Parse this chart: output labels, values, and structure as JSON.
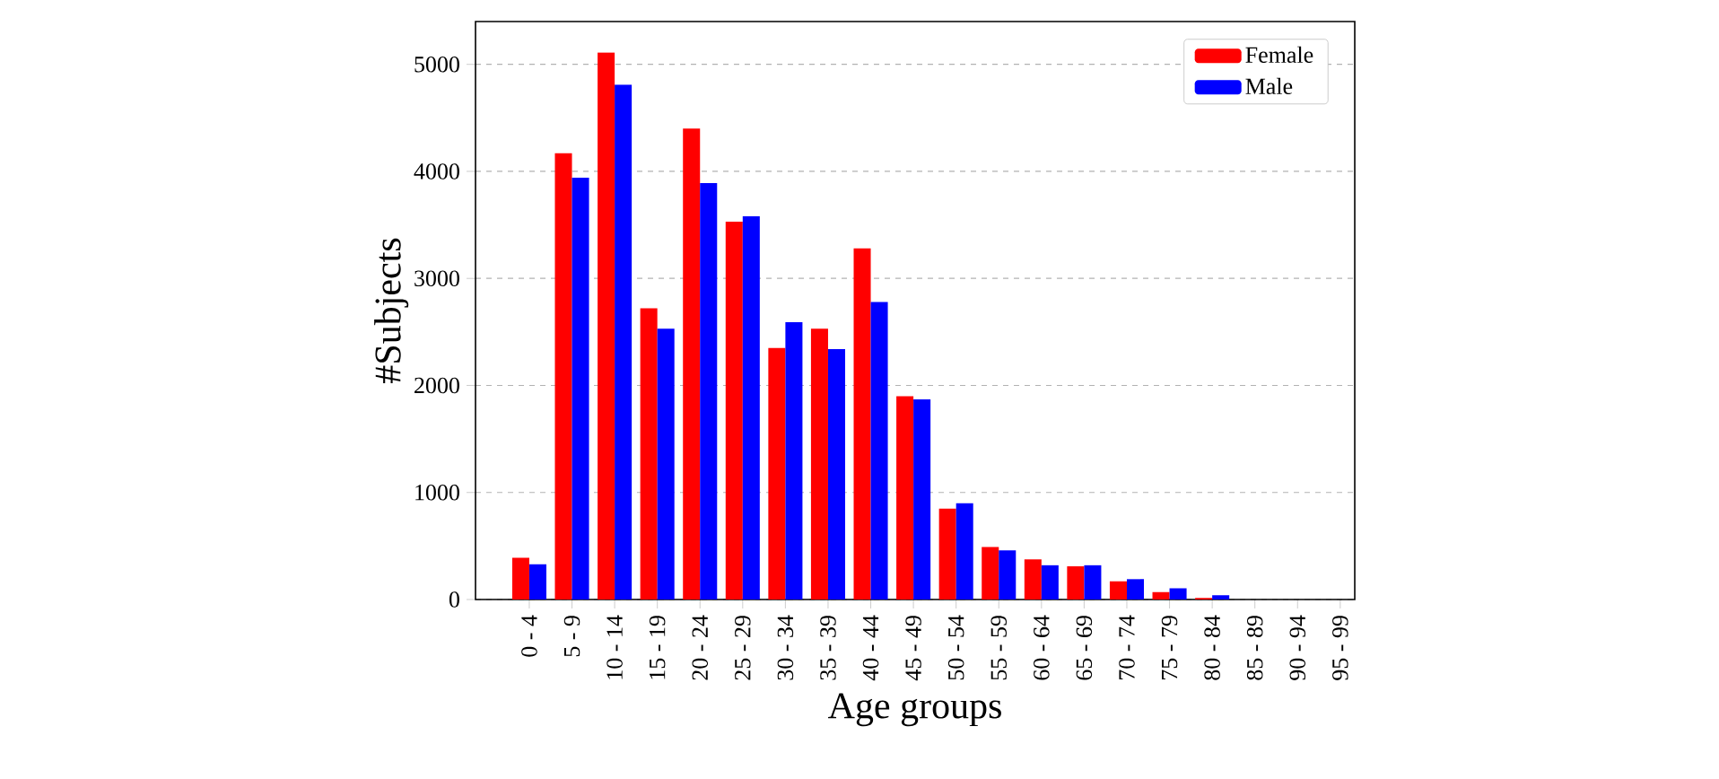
{
  "chart_data": {
    "type": "bar",
    "xlabel": "Age groups",
    "ylabel": "#Subjects",
    "categories": [
      "0 - 4",
      "5 - 9",
      "10 - 14",
      "15 - 19",
      "20 - 24",
      "25 - 29",
      "30 - 34",
      "35 - 39",
      "40 - 44",
      "45 - 49",
      "50 - 54",
      "55 - 59",
      "60 - 64",
      "65 - 69",
      "70 - 74",
      "75 - 79",
      "80 - 84",
      "85 - 89",
      "90 - 94",
      "95 - 99"
    ],
    "series": [
      {
        "name": "Female",
        "color": "#ff0000",
        "values": [
          390,
          4170,
          5110,
          2720,
          4400,
          3530,
          2350,
          2530,
          3280,
          1900,
          850,
          490,
          375,
          310,
          170,
          70,
          15,
          0,
          0,
          0
        ]
      },
      {
        "name": "Male",
        "color": "#0000ff",
        "values": [
          330,
          3940,
          4810,
          2530,
          3890,
          3580,
          2590,
          2340,
          2780,
          1870,
          900,
          460,
          320,
          320,
          190,
          105,
          40,
          0,
          0,
          0
        ]
      }
    ],
    "ylim": [
      0,
      5400
    ],
    "yticks": [
      0,
      1000,
      2000,
      3000,
      4000,
      5000
    ],
    "grid": "y",
    "legend": "top right"
  }
}
